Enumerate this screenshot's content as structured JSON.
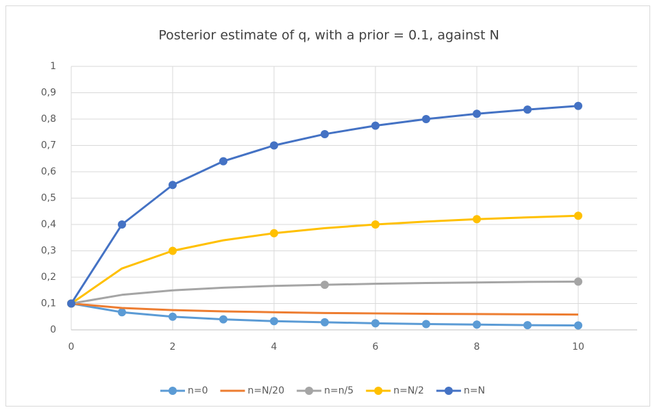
{
  "chart_data": {
    "type": "line",
    "title": "Posterior estimate of q, with a prior = 0.1, against N",
    "x": [
      0,
      1,
      2,
      3,
      4,
      5,
      6,
      7,
      8,
      9,
      10
    ],
    "xlim": [
      0,
      11
    ],
    "xticks": [
      0,
      2,
      4,
      6,
      8,
      10
    ],
    "ylim": [
      0,
      1
    ],
    "yticks": [
      0,
      {
        "value": 0.1,
        "label": "0,1"
      },
      {
        "value": 0.2,
        "label": "0,2"
      },
      {
        "value": 0.3,
        "label": "0,3"
      },
      {
        "value": 0.4,
        "label": "0,4"
      },
      {
        "value": 0.5,
        "label": "0,5"
      },
      {
        "value": 0.6,
        "label": "0,6"
      },
      {
        "value": 0.7,
        "label": "0,7"
      },
      {
        "value": 0.8,
        "label": "0,8"
      },
      {
        "value": 0.9,
        "label": "0,9"
      },
      1
    ],
    "grid": true,
    "legend": "bottom",
    "series": [
      {
        "name": "n=0",
        "color": "#5b9bd5",
        "marker_step": 1,
        "values": [
          0.1,
          0.067,
          0.05,
          0.04,
          0.033,
          0.029,
          0.025,
          0.022,
          0.02,
          0.018,
          0.017
        ]
      },
      {
        "name": "n=N/20",
        "color": "#ed7d31",
        "marker_step": 0,
        "values": [
          0.1,
          0.083,
          0.075,
          0.07,
          0.067,
          0.064,
          0.0625,
          0.061,
          0.06,
          0.059,
          0.058
        ]
      },
      {
        "name": "n=n/5",
        "color": "#a5a5a5",
        "marker_step": 5,
        "values": [
          0.1,
          0.133,
          0.15,
          0.16,
          0.167,
          0.171,
          0.175,
          0.178,
          0.18,
          0.182,
          0.183
        ]
      },
      {
        "name": "n=N/2",
        "color": "#ffc000",
        "marker_step": 2,
        "values": [
          0.1,
          0.233,
          0.3,
          0.34,
          0.367,
          0.386,
          0.4,
          0.411,
          0.42,
          0.427,
          0.433
        ]
      },
      {
        "name": "n=N",
        "color": "#4472c4",
        "marker_step": 1,
        "values": [
          0.1,
          0.4,
          0.55,
          0.64,
          0.7,
          0.743,
          0.775,
          0.8,
          0.82,
          0.836,
          0.85
        ]
      }
    ]
  }
}
